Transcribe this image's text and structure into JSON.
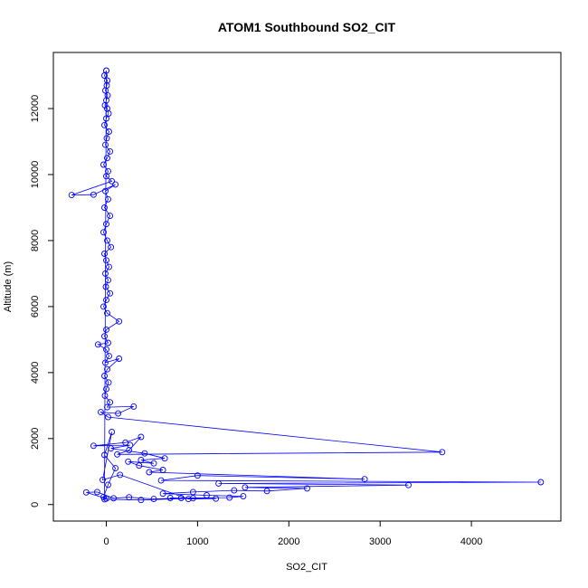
{
  "chart_data": {
    "type": "scatter",
    "title": "ATOM1 Southbound SO2_CIT",
    "xlabel": "SO2_CIT",
    "ylabel": "Altitude (m)",
    "xlim": [
      -580,
      4980
    ],
    "ylim": [
      -500,
      13700
    ],
    "x_ticks": [
      0,
      1000,
      2000,
      3000,
      4000
    ],
    "y_ticks": [
      0,
      2000,
      4000,
      6000,
      8000,
      10000,
      12000
    ],
    "grid": false,
    "legend": "none",
    "color": "#0000ff",
    "series": [
      {
        "points": [
          [
            0,
            13150
          ],
          [
            -20,
            13000
          ],
          [
            10,
            12850
          ],
          [
            5,
            12700
          ],
          [
            -10,
            12550
          ],
          [
            15,
            12400
          ],
          [
            0,
            12250
          ],
          [
            -15,
            12100
          ],
          [
            10,
            12000
          ],
          [
            25,
            11850
          ],
          [
            0,
            11700
          ],
          [
            -20,
            11500
          ],
          [
            30,
            11300
          ],
          [
            5,
            11100
          ],
          [
            -10,
            10900
          ],
          [
            40,
            10700
          ],
          [
            10,
            10500
          ],
          [
            -30,
            10300
          ],
          [
            20,
            10100
          ],
          [
            0,
            9950
          ],
          [
            60,
            9800
          ],
          [
            -380,
            9380
          ],
          [
            -140,
            9390
          ],
          [
            100,
            9700
          ],
          [
            -10,
            9500
          ],
          [
            20,
            9250
          ],
          [
            -20,
            9000
          ],
          [
            40,
            8750
          ],
          [
            0,
            8500
          ],
          [
            -30,
            8250
          ],
          [
            10,
            8000
          ],
          [
            50,
            7800
          ],
          [
            -20,
            7600
          ],
          [
            0,
            7400
          ],
          [
            30,
            7200
          ],
          [
            -10,
            7000
          ],
          [
            20,
            6800
          ],
          [
            -5,
            6600
          ],
          [
            40,
            6400
          ],
          [
            0,
            6200
          ],
          [
            -30,
            6000
          ],
          [
            10,
            5800
          ],
          [
            140,
            5550
          ],
          [
            0,
            5300
          ],
          [
            -20,
            5100
          ],
          [
            20,
            4900
          ],
          [
            -90,
            4850
          ],
          [
            0,
            4700
          ],
          [
            30,
            4500
          ],
          [
            -10,
            4300
          ],
          [
            140,
            4420
          ],
          [
            10,
            4100
          ],
          [
            -20,
            3900
          ],
          [
            25,
            3700
          ],
          [
            0,
            3500
          ],
          [
            -15,
            3300
          ],
          [
            40,
            3100
          ],
          [
            10,
            2950
          ],
          [
            300,
            2970
          ],
          [
            130,
            2760
          ],
          [
            -60,
            2800
          ],
          [
            20,
            2650
          ],
          [
            3680,
            1590
          ],
          [
            120,
            1520
          ],
          [
            250,
            1650
          ],
          [
            380,
            2050
          ],
          [
            210,
            1880
          ],
          [
            -140,
            1780
          ],
          [
            260,
            1800
          ],
          [
            50,
            1700
          ],
          [
            420,
            1550
          ],
          [
            640,
            1400
          ],
          [
            380,
            1350
          ],
          [
            520,
            1250
          ],
          [
            240,
            1300
          ],
          [
            360,
            1180
          ],
          [
            620,
            1050
          ],
          [
            470,
            980
          ],
          [
            2830,
            770
          ],
          [
            1000,
            880
          ],
          [
            600,
            730
          ],
          [
            4760,
            680
          ],
          [
            1230,
            640
          ],
          [
            3310,
            590
          ],
          [
            1520,
            520
          ],
          [
            2200,
            490
          ],
          [
            1760,
            410
          ],
          [
            1400,
            430
          ],
          [
            950,
            380
          ],
          [
            620,
            330
          ],
          [
            1100,
            280
          ],
          [
            1500,
            250
          ],
          [
            1350,
            210
          ],
          [
            820,
            200
          ],
          [
            520,
            170
          ],
          [
            250,
            220
          ],
          [
            80,
            190
          ],
          [
            -100,
            380
          ],
          [
            -220,
            370
          ],
          [
            0,
            180
          ],
          [
            -30,
            230
          ],
          [
            20,
            600
          ],
          [
            100,
            1100
          ],
          [
            -20,
            1500
          ],
          [
            60,
            2200
          ],
          [
            -40,
            750
          ],
          [
            150,
            900
          ],
          [
            900,
            170
          ],
          [
            1200,
            180
          ],
          [
            700,
            200
          ],
          [
            950,
            190
          ],
          [
            380,
            140
          ],
          [
            -20,
            160
          ],
          [
            0,
            13150
          ]
        ]
      }
    ]
  }
}
